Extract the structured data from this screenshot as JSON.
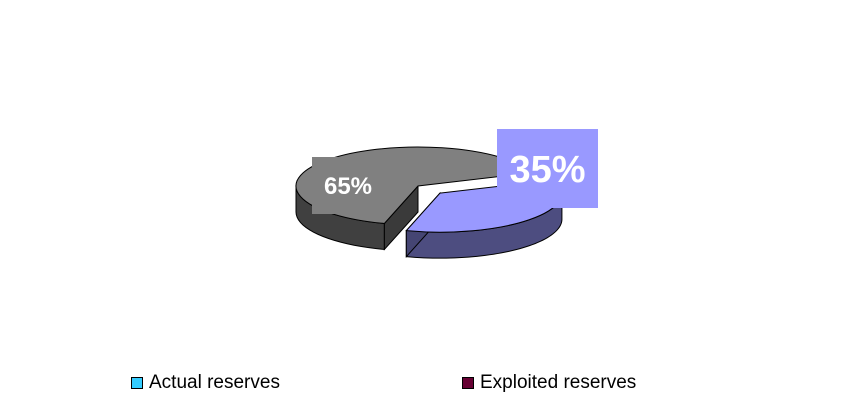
{
  "chart_data": {
    "type": "pie",
    "title": "",
    "three_d": true,
    "categories": [
      "Actual reserves",
      "Exploited reserves"
    ],
    "values": [
      35,
      65
    ],
    "data_labels": [
      "35%",
      "65%"
    ],
    "legend": {
      "position": "bottom",
      "entries": [
        "Actual reserves",
        "Exploited reserves"
      ],
      "swatch_colors": [
        "#33ccff",
        "#660033"
      ]
    },
    "slice_colors": [
      "#9999ff",
      "#808080"
    ],
    "label_box_colors": [
      "#9999ff",
      "#808080"
    ]
  }
}
